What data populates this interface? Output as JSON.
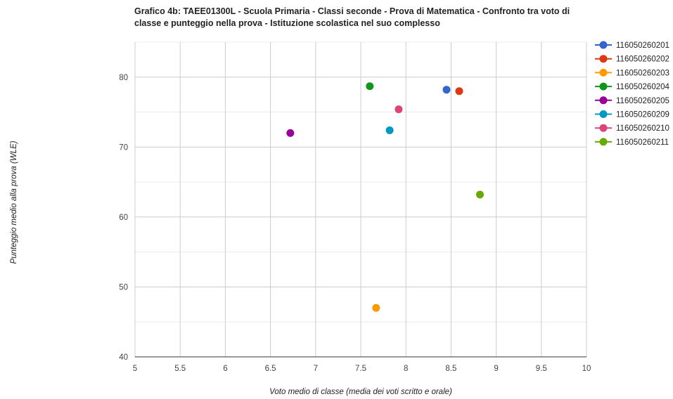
{
  "chart_data": {
    "type": "scatter",
    "title": "Grafico 4b: TAEE01300L - Scuola Primaria - Classi seconde - Prova di Matematica - Confronto tra voto di classe e punteggio nella prova - Istituzione scolastica nel suo complesso",
    "xlabel": "Voto medio di classe (media dei voti scritto e orale)",
    "ylabel": "Punteggio medio alla prova (WLE)",
    "xlim": [
      5,
      10
    ],
    "ylim": [
      40,
      85
    ],
    "x_ticks": [
      "5",
      "5.5",
      "6",
      "6.5",
      "7",
      "7.5",
      "8",
      "8.5",
      "9",
      "9.5",
      "10"
    ],
    "y_ticks": [
      "40",
      "50",
      "60",
      "70",
      "80"
    ],
    "grid": true,
    "legend_position": "right",
    "series": [
      {
        "name": "116050260201",
        "color": "#3366cc",
        "points": [
          {
            "x": 8.45,
            "y": 78.2
          }
        ]
      },
      {
        "name": "116050260202",
        "color": "#dc3912",
        "points": [
          {
            "x": 8.59,
            "y": 78.0
          }
        ]
      },
      {
        "name": "116050260203",
        "color": "#ff9900",
        "points": [
          {
            "x": 7.67,
            "y": 47.0
          }
        ]
      },
      {
        "name": "116050260204",
        "color": "#109618",
        "points": [
          {
            "x": 7.6,
            "y": 78.7
          }
        ]
      },
      {
        "name": "116050260205",
        "color": "#990099",
        "points": [
          {
            "x": 6.72,
            "y": 72.0
          }
        ]
      },
      {
        "name": "116050260209",
        "color": "#0099c6",
        "points": [
          {
            "x": 7.82,
            "y": 72.4
          }
        ]
      },
      {
        "name": "116050260210",
        "color": "#dd4477",
        "points": [
          {
            "x": 7.92,
            "y": 75.4
          }
        ]
      },
      {
        "name": "116050260211",
        "color": "#66aa00",
        "points": [
          {
            "x": 8.82,
            "y": 63.2
          }
        ]
      }
    ]
  }
}
